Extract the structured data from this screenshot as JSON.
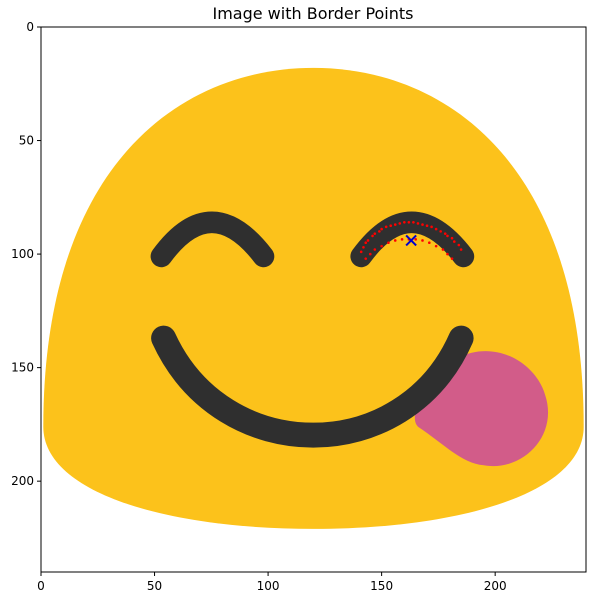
{
  "chart_data": {
    "type": "scatter",
    "title": "Image with Border Points",
    "xlabel": "",
    "ylabel": "",
    "xlim": [
      0,
      240
    ],
    "ylim": [
      240,
      0
    ],
    "x_ticks": [
      0,
      50,
      100,
      150,
      200
    ],
    "y_ticks": [
      0,
      50,
      100,
      150,
      200
    ],
    "grid": false,
    "background_image": {
      "subject": "face-savoring-food-emoji",
      "colors": {
        "face": "#FCC21B",
        "features": "#2F2F2F",
        "tongue": "#D25C89"
      }
    },
    "series": [
      {
        "marker": "point",
        "color": "#FF0000",
        "points": [
          [
            141,
            99
          ],
          [
            142,
            97
          ],
          [
            143,
            95
          ],
          [
            144,
            94
          ],
          [
            146,
            92
          ],
          [
            147,
            91
          ],
          [
            149,
            90
          ],
          [
            150,
            89
          ],
          [
            152,
            88
          ],
          [
            154,
            87.5
          ],
          [
            156,
            87
          ],
          [
            158,
            86.5
          ],
          [
            160,
            86
          ],
          [
            162,
            86
          ],
          [
            164,
            86
          ],
          [
            166,
            86.5
          ],
          [
            168,
            87
          ],
          [
            170,
            87.5
          ],
          [
            172,
            88
          ],
          [
            174,
            89
          ],
          [
            176,
            90
          ],
          [
            178,
            91
          ],
          [
            179,
            92
          ],
          [
            181,
            93
          ],
          [
            182,
            94.5
          ],
          [
            184,
            96
          ],
          [
            185,
            98
          ],
          [
            143,
            102
          ],
          [
            145,
            100
          ],
          [
            147,
            98
          ],
          [
            150,
            96.5
          ],
          [
            153,
            95
          ],
          [
            156,
            94
          ],
          [
            159,
            93.5
          ],
          [
            162,
            93.5
          ],
          [
            165,
            93.5
          ],
          [
            168,
            94
          ],
          [
            171,
            95
          ],
          [
            174,
            96.5
          ],
          [
            177,
            98
          ],
          [
            179,
            100
          ],
          [
            181,
            102
          ]
        ]
      },
      {
        "marker": "x",
        "color": "#0000CC",
        "points": [
          [
            163,
            94
          ]
        ]
      }
    ]
  }
}
